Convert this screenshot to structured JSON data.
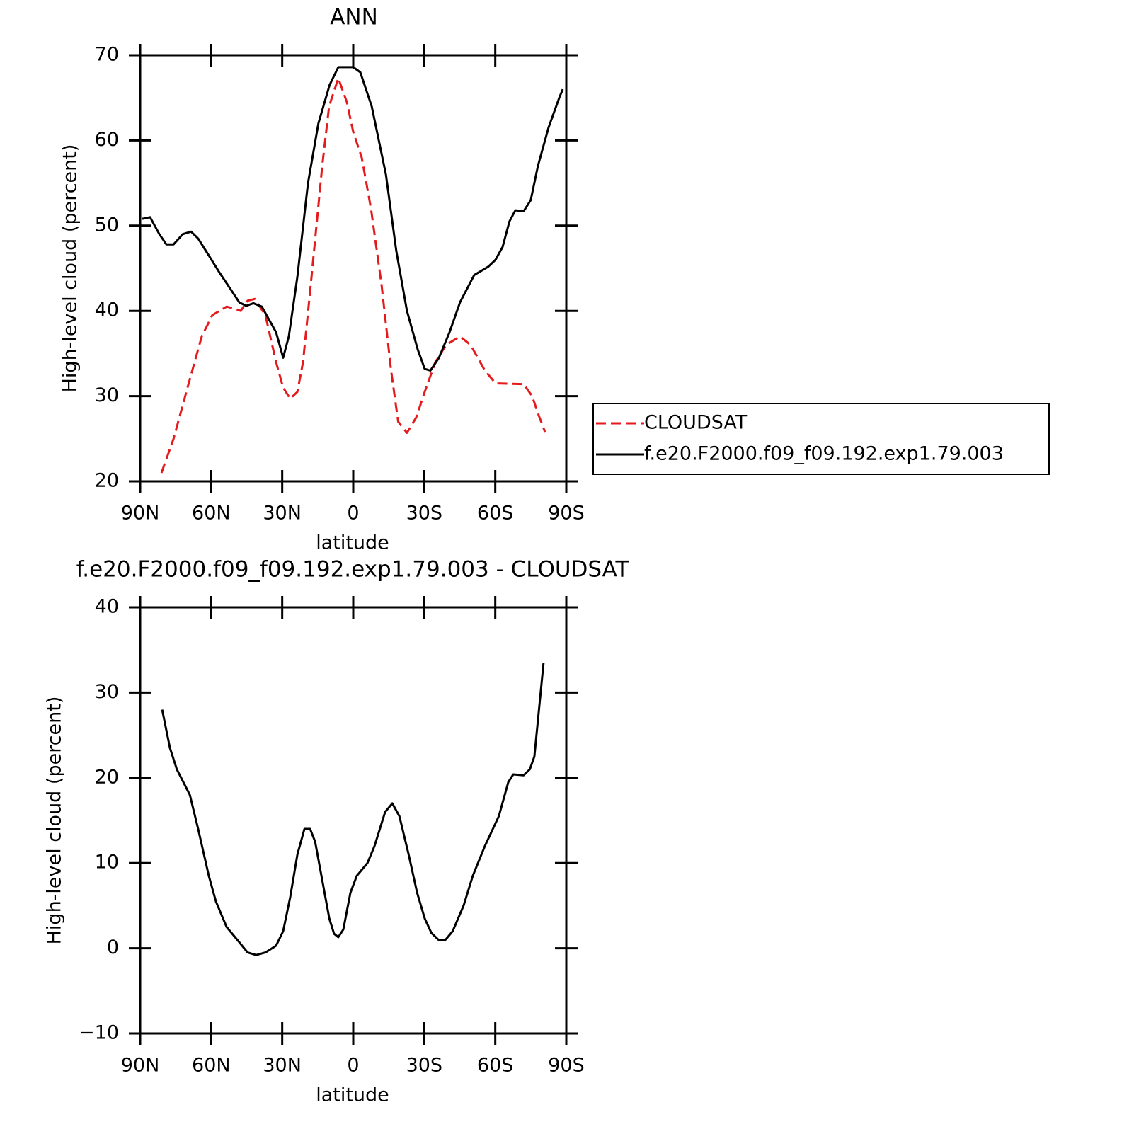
{
  "chart_data": [
    {
      "type": "line",
      "title": "ANN",
      "x_label": "latitude",
      "y_label": "High-level cloud (percent)",
      "xlim": [
        90,
        -90
      ],
      "ylim": [
        20,
        70
      ],
      "xticks": [
        {
          "value": 90,
          "label": "90N"
        },
        {
          "value": 60,
          "label": "60N"
        },
        {
          "value": 30,
          "label": "30N"
        },
        0,
        {
          "value": -30,
          "label": "30S"
        },
        {
          "value": -60,
          "label": "60S"
        },
        {
          "value": -90,
          "label": "90S"
        }
      ],
      "yticks": [
        20,
        30,
        40,
        50,
        60,
        70
      ],
      "legend": "right",
      "series": [
        {
          "name": "CLOUDSAT",
          "color": "#e41a1c",
          "dash": true,
          "x": [
            81,
            75.9,
            70,
            64,
            59.5,
            53.5,
            50.5,
            47.5,
            44.6,
            41.6,
            37.1,
            32.6,
            29.6,
            26.6,
            23.6,
            21.2,
            17.6,
            13.1,
            10.2,
            6.3,
            2.7,
            0,
            -3.6,
            -7.5,
            -12,
            -16,
            -19,
            -22.7,
            -26.6,
            -30.2,
            -34.7,
            -39.2,
            -45.1,
            -49.6,
            -55.6,
            -60.1,
            -72,
            -75.6,
            -78,
            -81
          ],
          "values": [
            21,
            25,
            31,
            37,
            39.5,
            40.5,
            40.3,
            40,
            41.2,
            41.4,
            39.5,
            34,
            31,
            29.7,
            30.5,
            34,
            44,
            57,
            64,
            67.3,
            64.5,
            61,
            58,
            52,
            43,
            33,
            27,
            25.7,
            27.5,
            30.5,
            34,
            36,
            37,
            36,
            33,
            31.5,
            31.4,
            30,
            28,
            25.8
          ]
        },
        {
          "name": "f.e20.F2000.f09_f09.192.exp1.79.003",
          "color": "#000000",
          "dash": false,
          "x": [
            89.1,
            85.8,
            81.9,
            78.9,
            75.9,
            72,
            68.5,
            65.5,
            61,
            56.5,
            52.9,
            48.1,
            45.2,
            42.2,
            38.6,
            35.6,
            32.6,
            29.6,
            27.2,
            23.6,
            19.1,
            14.7,
            10,
            6.3,
            0,
            -3,
            -7.8,
            -13.8,
            -18.2,
            -22.7,
            -27.2,
            -30.2,
            -32.6,
            -36.2,
            -40.7,
            -45.1,
            -51.1,
            -57.1,
            -60.1,
            -63.1,
            -66,
            -68.5,
            -72,
            -75,
            -78,
            -82.5,
            -87,
            -88.5
          ],
          "values": [
            50.8,
            51,
            49,
            47.8,
            47.8,
            49,
            49.3,
            48.5,
            46.5,
            44.5,
            43,
            41,
            40.6,
            40.9,
            40.5,
            39,
            37.5,
            34.5,
            37,
            44,
            55,
            62,
            66.5,
            68.6,
            68.6,
            68,
            64,
            56,
            47,
            40,
            35.5,
            33.2,
            33,
            34.5,
            37.5,
            41,
            44.2,
            45.2,
            46,
            47.5,
            50.5,
            51.8,
            51.7,
            53,
            57,
            61.5,
            65,
            66
          ]
        }
      ]
    },
    {
      "type": "line",
      "title": "f.e20.F2000.f09_f09.192.exp1.79.003 - CLOUDSAT",
      "x_label": "latitude",
      "y_label": "High-level cloud (percent)",
      "xlim": [
        90,
        -90
      ],
      "ylim": [
        -10,
        40
      ],
      "xticks": [
        {
          "value": 90,
          "label": "90N"
        },
        {
          "value": 60,
          "label": "60N"
        },
        {
          "value": 30,
          "label": "30N"
        },
        0,
        {
          "value": -30,
          "label": "30S"
        },
        {
          "value": -60,
          "label": "60S"
        },
        {
          "value": -90,
          "label": "90S"
        }
      ],
      "yticks": [
        {
          "value": -10,
          "label": "−10"
        },
        0,
        10,
        20,
        30,
        40
      ],
      "series": [
        {
          "color": "#000000",
          "dash": false,
          "x": [
            80.7,
            77.4,
            74.5,
            69,
            65.5,
            61,
            58,
            53.5,
            49,
            44.6,
            41,
            37.1,
            32.6,
            29.6,
            26.6,
            23.6,
            20.6,
            18.2,
            16.1,
            13.1,
            10.1,
            8.1,
            6.3,
            4.2,
            1.2,
            -1.5,
            -6,
            -9,
            -13.5,
            -16.5,
            -19.5,
            -23.4,
            -27,
            -30.2,
            -33,
            -36,
            -39,
            -42,
            -46.6,
            -50.5,
            -55.6,
            -61.5,
            -65.5,
            -67.6,
            -72,
            -74.6,
            -76.5,
            -80.4
          ],
          "values": [
            28,
            23.5,
            21,
            18,
            14,
            8.5,
            5.5,
            2.5,
            1,
            -0.5,
            -0.8,
            -0.5,
            0.3,
            2,
            6,
            11,
            14,
            14,
            12.5,
            8,
            3.5,
            1.7,
            1.3,
            2.2,
            6.5,
            8.5,
            10,
            12,
            16,
            17,
            15.5,
            11,
            6.5,
            3.5,
            1.8,
            1,
            1,
            2,
            5,
            8.5,
            12,
            15.5,
            19.5,
            20.4,
            20.3,
            21,
            22.5,
            33.5
          ]
        }
      ]
    }
  ]
}
